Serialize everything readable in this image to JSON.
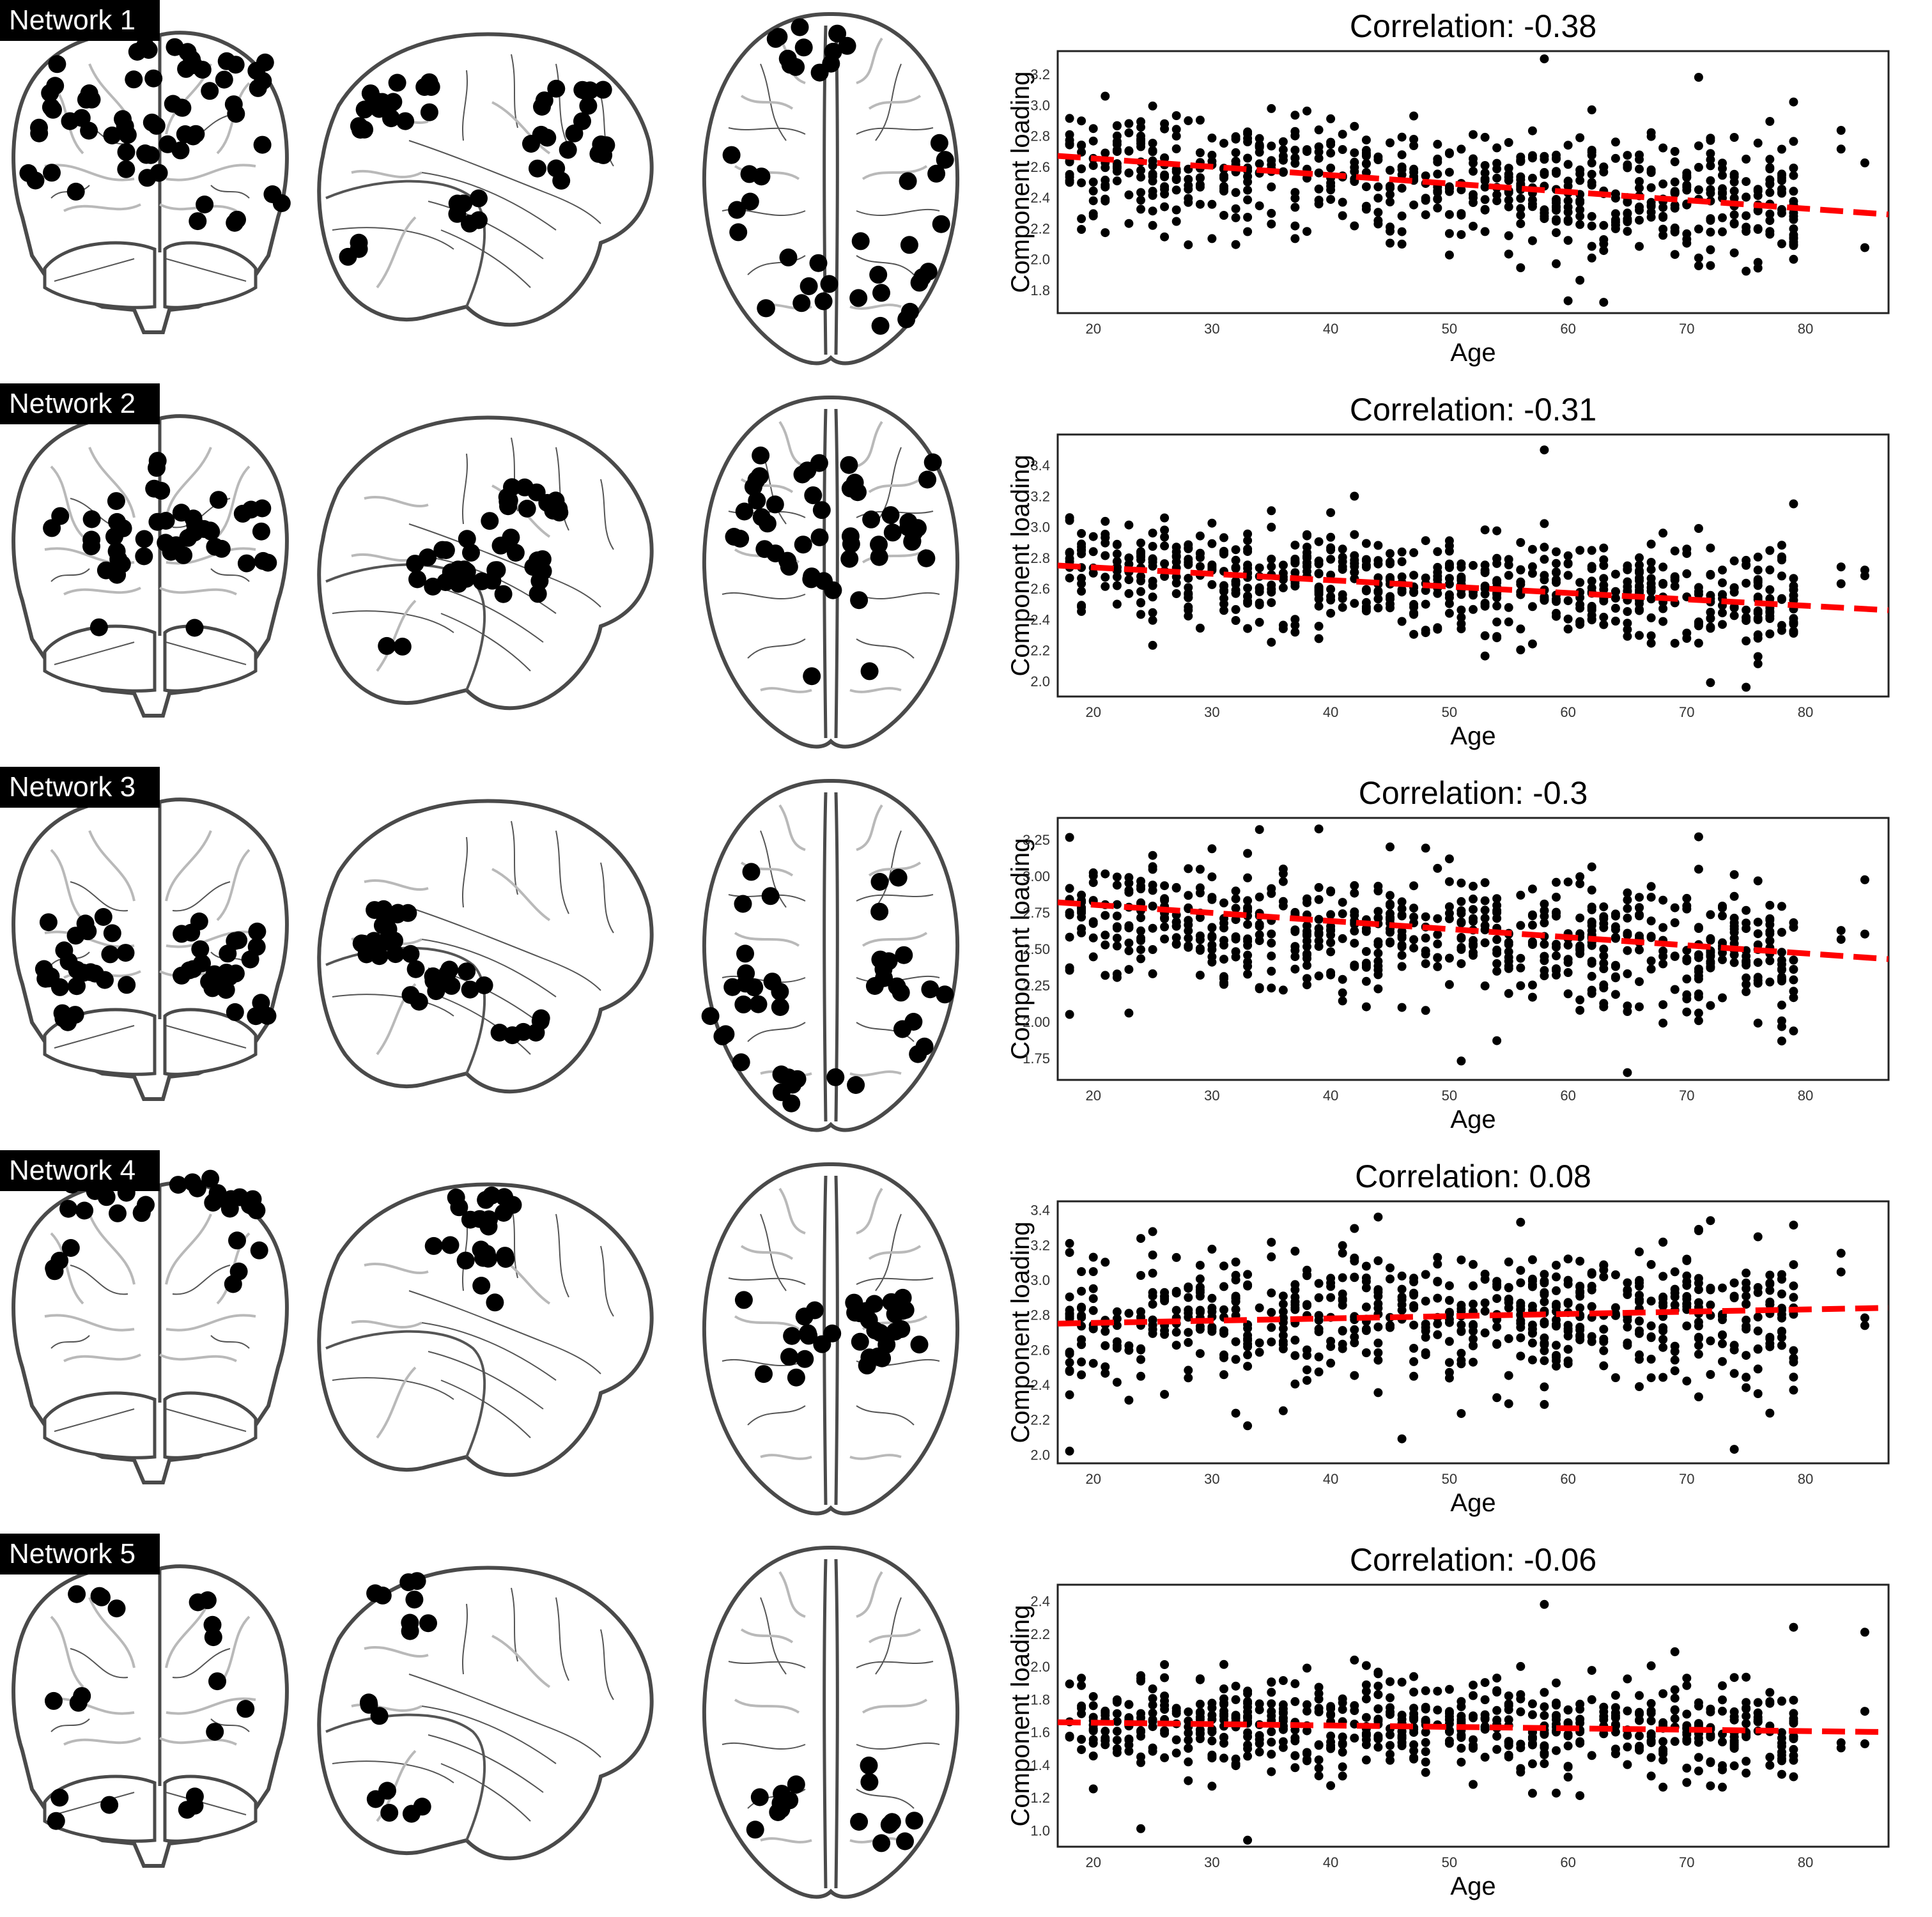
{
  "colors": {
    "points": "#000000",
    "trend": "#ff0000",
    "brain_outline": "#4a4a4a",
    "gyri_light": "#b9b9b9",
    "gyri_dark": "#555555",
    "label_bg": "#000000",
    "label_fg": "#ffffff"
  },
  "networks": [
    {
      "label": "Network 1"
    },
    {
      "label": "Network 2"
    },
    {
      "label": "Network 3"
    },
    {
      "label": "Network 4"
    },
    {
      "label": "Network 5"
    }
  ],
  "chart_data": [
    {
      "type": "scatter",
      "title": "Correlation: -0.38",
      "xlabel": "Age",
      "ylabel": "Component loading",
      "xlim": [
        17,
        87
      ],
      "ylim": [
        1.65,
        3.35
      ],
      "xticks": [
        "20",
        "30",
        "40",
        "50",
        "60",
        "70",
        "80"
      ],
      "yticks": [
        "1.8",
        "2.0",
        "2.2",
        "2.4",
        "2.6",
        "2.8",
        "3.0",
        "3.2"
      ],
      "trend": {
        "x": [
          17,
          87
        ],
        "y": [
          2.67,
          2.29
        ]
      },
      "points_summary": {
        "n_approx": 640,
        "x_range": [
          18,
          86
        ],
        "center_at_20": 2.62,
        "center_at_80": 2.34,
        "spread": 0.26,
        "outliers": [
          [
            58,
            3.3
          ],
          [
            71,
            3.18
          ],
          [
            79,
            3.02
          ],
          [
            60,
            1.73
          ],
          [
            63,
            1.72
          ]
        ]
      },
      "grid": false
    },
    {
      "type": "scatter",
      "title": "Correlation: -0.31",
      "xlabel": "Age",
      "ylabel": "Component loading",
      "xlim": [
        17,
        87
      ],
      "ylim": [
        1.9,
        3.6
      ],
      "xticks": [
        "20",
        "30",
        "40",
        "50",
        "60",
        "70",
        "80"
      ],
      "yticks": [
        "2.0",
        "2.2",
        "2.4",
        "2.6",
        "2.8",
        "3.0",
        "3.2",
        "3.4"
      ],
      "trend": {
        "x": [
          17,
          87
        ],
        "y": [
          2.75,
          2.46
        ]
      },
      "points_summary": {
        "n_approx": 640,
        "x_range": [
          18,
          86
        ],
        "center_at_20": 2.72,
        "center_at_80": 2.5,
        "spread": 0.22,
        "outliers": [
          [
            58,
            3.5
          ],
          [
            79,
            3.15
          ],
          [
            42,
            3.2
          ],
          [
            72,
            1.99
          ],
          [
            75,
            1.96
          ]
        ]
      },
      "grid": false
    },
    {
      "type": "scatter",
      "title": "Correlation: -0.3",
      "xlabel": "Age",
      "ylabel": "Component loading",
      "xlim": [
        17,
        87
      ],
      "ylim": [
        1.6,
        3.4
      ],
      "xticks": [
        "20",
        "30",
        "40",
        "50",
        "60",
        "70",
        "80"
      ],
      "yticks": [
        "1.75",
        "2.00",
        "2.25",
        "2.50",
        "2.75",
        "3.00",
        "3.25"
      ],
      "trend": {
        "x": [
          17,
          87
        ],
        "y": [
          2.82,
          2.43
        ]
      },
      "points_summary": {
        "n_approx": 640,
        "x_range": [
          18,
          86
        ],
        "center_at_20": 2.72,
        "center_at_80": 2.46,
        "spread": 0.3,
        "outliers": [
          [
            34,
            3.32
          ],
          [
            71,
            3.27
          ],
          [
            18,
            2.05
          ],
          [
            51,
            1.73
          ],
          [
            65,
            1.65
          ]
        ]
      },
      "grid": false
    },
    {
      "type": "scatter",
      "title": "Correlation: 0.08",
      "xlabel": "Age",
      "ylabel": "Component loading",
      "xlim": [
        17,
        87
      ],
      "ylim": [
        1.95,
        3.45
      ],
      "xticks": [
        "20",
        "30",
        "40",
        "50",
        "60",
        "70",
        "80"
      ],
      "yticks": [
        "2.0",
        "2.2",
        "2.4",
        "2.6",
        "2.8",
        "3.0",
        "3.2",
        "3.4"
      ],
      "trend": {
        "x": [
          17,
          87
        ],
        "y": [
          2.75,
          2.84
        ]
      },
      "points_summary": {
        "n_approx": 640,
        "x_range": [
          18,
          86
        ],
        "center_at_20": 2.76,
        "center_at_80": 2.82,
        "spread": 0.27,
        "outliers": [
          [
            44,
            3.36
          ],
          [
            56,
            3.33
          ],
          [
            18,
            2.02
          ],
          [
            74,
            2.03
          ],
          [
            46,
            2.09
          ]
        ]
      },
      "grid": false
    },
    {
      "type": "scatter",
      "title": "Correlation: -0.06",
      "xlabel": "Age",
      "ylabel": "Component loading",
      "xlim": [
        17,
        87
      ],
      "ylim": [
        0.9,
        2.5
      ],
      "xticks": [
        "20",
        "30",
        "40",
        "50",
        "60",
        "70",
        "80"
      ],
      "yticks": [
        "1.0",
        "1.2",
        "1.4",
        "1.6",
        "1.8",
        "2.0",
        "2.2",
        "2.4"
      ],
      "trend": {
        "x": [
          17,
          87
        ],
        "y": [
          1.66,
          1.6
        ]
      },
      "points_summary": {
        "n_approx": 640,
        "x_range": [
          18,
          86
        ],
        "center_at_20": 1.66,
        "center_at_80": 1.61,
        "spread": 0.2,
        "outliers": [
          [
            58,
            2.38
          ],
          [
            79,
            2.24
          ],
          [
            85,
            2.21
          ],
          [
            33,
            0.94
          ],
          [
            24,
            1.01
          ]
        ]
      },
      "grid": false
    }
  ]
}
